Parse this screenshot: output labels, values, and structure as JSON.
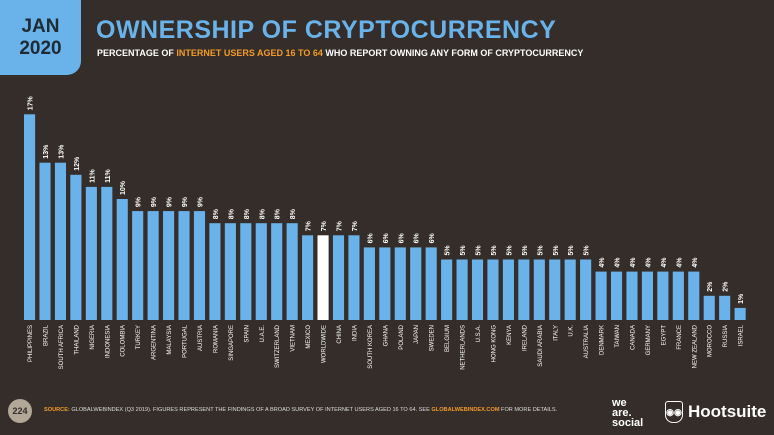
{
  "header": {
    "month": "JAN",
    "year": "2020",
    "title": "OWNERSHIP OF CRYPTOCURRENCY",
    "subtitle_pre": "PERCENTAGE OF ",
    "subtitle_hl": "INTERNET USERS AGED 16 TO 64",
    "subtitle_post": " WHO REPORT OWNING ANY FORM OF CRYPTOCURRENCY"
  },
  "footer": {
    "page": "224",
    "source_label": "SOURCE:",
    "source_text": " GLOBALWEBINDEX (Q3 2019). FIGURES REPRESENT THE FINDINGS OF A BROAD SURVEY OF INTERNET USERS AGED 16 TO 64. SEE ",
    "source_link": "GLOBALWEBINDEX.COM",
    "source_end": " FOR MORE DETAILS.",
    "logo_we_are_social": "we are social",
    "logo_hootsuite": "Hootsuite"
  },
  "colors": {
    "background": "#342d29",
    "bar": "#69b3ea",
    "highlight_bar": "#ffffff",
    "accent": "#f39b26"
  },
  "chart_data": {
    "type": "bar",
    "unit": "%",
    "ylim": [
      0,
      17
    ],
    "grid": false,
    "highlight": "WORLDWIDE",
    "categories": [
      "PHILIPPINES",
      "BRAZIL",
      "SOUTH AFRICA",
      "THAILAND",
      "NIGERIA",
      "INDONESIA",
      "COLOMBIA",
      "TURKEY",
      "ARGENTINA",
      "MALAYSIA",
      "PORTUGAL",
      "AUSTRIA",
      "ROMANIA",
      "SINGAPORE",
      "SPAIN",
      "U.A.E.",
      "SWITZERLAND",
      "VIETNAM",
      "MEXICO",
      "WORLDWIDE",
      "CHINA",
      "INDIA",
      "SOUTH KOREA",
      "GHANA",
      "POLAND",
      "JAPAN",
      "SWEDEN",
      "BELGIUM",
      "NETHERLANDS",
      "U.S.A.",
      "HONG KONG",
      "KENYA",
      "IRELAND",
      "SAUDI ARABIA",
      "ITALY",
      "U.K.",
      "AUSTRALIA",
      "DENMARK",
      "TAIWAN",
      "CANADA",
      "GERMANY",
      "EGYPT",
      "FRANCE",
      "NEW ZEALAND",
      "MOROCCO",
      "RUSSIA",
      "ISRAEL"
    ],
    "values": [
      17,
      13,
      13,
      12,
      11,
      11,
      10,
      9,
      9,
      9,
      9,
      9,
      8,
      8,
      8,
      8,
      8,
      8,
      7,
      7,
      7,
      7,
      6,
      6,
      6,
      6,
      6,
      5,
      5,
      5,
      5,
      5,
      5,
      5,
      5,
      5,
      5,
      4,
      4,
      4,
      4,
      4,
      4,
      4,
      2,
      2,
      1
    ]
  }
}
